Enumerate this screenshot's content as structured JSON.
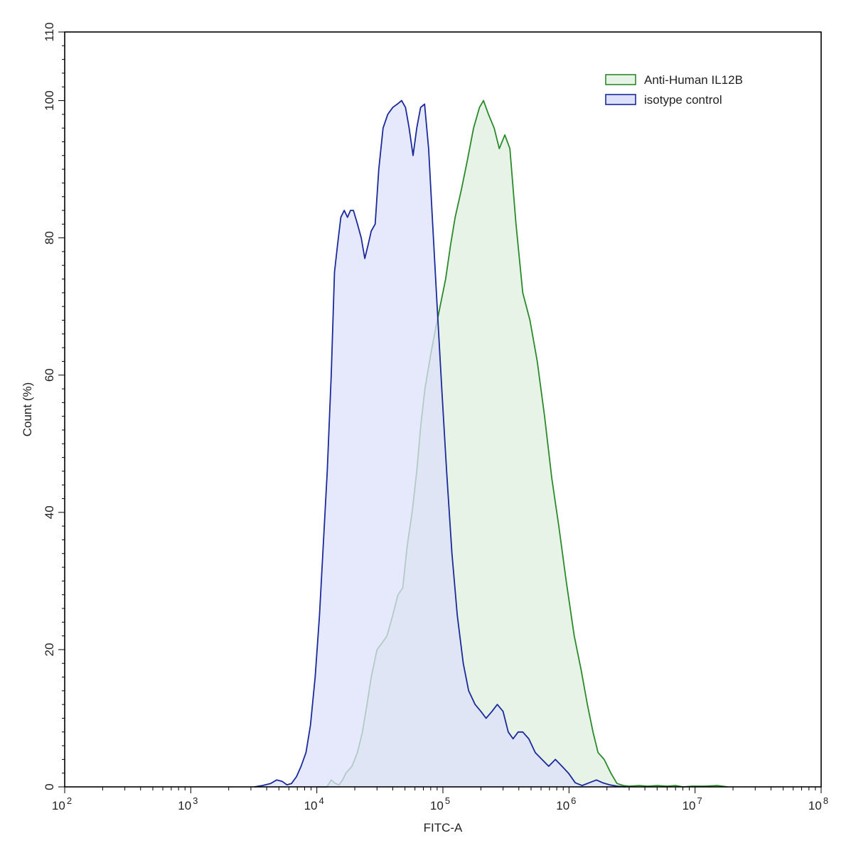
{
  "chart_data": {
    "type": "histogram",
    "title": "",
    "xlabel": "FITC-A",
    "ylabel": "Count  (%)",
    "x_scale": "log",
    "xlim": [
      100,
      100000000
    ],
    "ylim": [
      0,
      110
    ],
    "x_ticks": [
      {
        "base": "10",
        "exp": "2",
        "value": 100
      },
      {
        "base": "10",
        "exp": "3",
        "value": 1000
      },
      {
        "base": "10",
        "exp": "4",
        "value": 10000
      },
      {
        "base": "10",
        "exp": "5",
        "value": 100000
      },
      {
        "base": "10",
        "exp": "6",
        "value": 1000000
      },
      {
        "base": "10",
        "exp": "7",
        "value": 10000000
      },
      {
        "base": "10",
        "exp": "8",
        "value": 100000000
      }
    ],
    "y_ticks": [
      "0",
      "20",
      "40",
      "60",
      "80",
      "100",
      "110"
    ],
    "legend_position": "top-right",
    "grid": false,
    "series": [
      {
        "name": "Anti-Human IL12B",
        "stroke": "#2a8a2a",
        "fill": "#e6f3e6",
        "points": [
          [
            10000,
            0
          ],
          [
            12000,
            0
          ],
          [
            13000,
            1
          ],
          [
            14000,
            0.5
          ],
          [
            15000,
            0.3
          ],
          [
            16000,
            1
          ],
          [
            17000,
            2
          ],
          [
            19000,
            3
          ],
          [
            21000,
            5
          ],
          [
            23000,
            8
          ],
          [
            25000,
            12
          ],
          [
            27000,
            16
          ],
          [
            30000,
            20
          ],
          [
            33000,
            21
          ],
          [
            36000,
            22
          ],
          [
            40000,
            25
          ],
          [
            44000,
            28
          ],
          [
            48000,
            29
          ],
          [
            52000,
            35
          ],
          [
            57000,
            40
          ],
          [
            62000,
            46
          ],
          [
            67000,
            53
          ],
          [
            72000,
            58
          ],
          [
            80000,
            63
          ],
          [
            88000,
            67
          ],
          [
            95000,
            70
          ],
          [
            105000,
            74
          ],
          [
            115000,
            79
          ],
          [
            125000,
            83
          ],
          [
            140000,
            87
          ],
          [
            155000,
            91
          ],
          [
            175000,
            96
          ],
          [
            195000,
            99
          ],
          [
            210000,
            100
          ],
          [
            230000,
            98
          ],
          [
            255000,
            96
          ],
          [
            280000,
            93
          ],
          [
            310000,
            95
          ],
          [
            340000,
            93
          ],
          [
            380000,
            82
          ],
          [
            430000,
            72
          ],
          [
            490000,
            68
          ],
          [
            560000,
            62
          ],
          [
            640000,
            54
          ],
          [
            730000,
            45
          ],
          [
            830000,
            38
          ],
          [
            950000,
            30
          ],
          [
            1100000,
            22
          ],
          [
            1250000,
            17
          ],
          [
            1400000,
            12
          ],
          [
            1550000,
            8
          ],
          [
            1700000,
            5
          ],
          [
            1900000,
            4
          ],
          [
            2150000,
            2
          ],
          [
            2400000,
            0.5
          ],
          [
            2700000,
            0.2
          ],
          [
            3000000,
            0.1
          ],
          [
            3600000,
            0.2
          ],
          [
            4200000,
            0.1
          ],
          [
            5000000,
            0.2
          ],
          [
            6000000,
            0.1
          ],
          [
            7000000,
            0.2
          ],
          [
            8000000,
            0
          ],
          [
            9500000,
            0.1
          ],
          [
            12000000,
            0.1
          ],
          [
            15000000,
            0.2
          ],
          [
            18000000,
            0
          ]
        ]
      },
      {
        "name": "isotype control",
        "stroke": "#1a2a9a",
        "fill": "#dde0fa",
        "points": [
          [
            3200,
            0
          ],
          [
            3700,
            0.2
          ],
          [
            4300,
            0.5
          ],
          [
            4800,
            1
          ],
          [
            5300,
            0.8
          ],
          [
            5800,
            0.3
          ],
          [
            6300,
            0.5
          ],
          [
            6900,
            1.5
          ],
          [
            7500,
            3
          ],
          [
            8200,
            5
          ],
          [
            8900,
            9
          ],
          [
            9700,
            16
          ],
          [
            10500,
            25
          ],
          [
            11300,
            36
          ],
          [
            12100,
            46
          ],
          [
            13000,
            60
          ],
          [
            13800,
            75
          ],
          [
            14600,
            79
          ],
          [
            15500,
            83
          ],
          [
            16500,
            84
          ],
          [
            17500,
            83
          ],
          [
            18500,
            84
          ],
          [
            19500,
            84
          ],
          [
            21000,
            82
          ],
          [
            22500,
            80
          ],
          [
            24000,
            77
          ],
          [
            25500,
            79
          ],
          [
            27000,
            81
          ],
          [
            29000,
            82
          ],
          [
            31000,
            90
          ],
          [
            33500,
            96
          ],
          [
            36500,
            98
          ],
          [
            40000,
            99
          ],
          [
            43500,
            99.5
          ],
          [
            47000,
            100
          ],
          [
            50500,
            99
          ],
          [
            54000,
            96
          ],
          [
            58000,
            92
          ],
          [
            62000,
            96
          ],
          [
            66500,
            99
          ],
          [
            71500,
            99.5
          ],
          [
            77000,
            93
          ],
          [
            83000,
            82
          ],
          [
            90000,
            70
          ],
          [
            98000,
            58
          ],
          [
            107000,
            46
          ],
          [
            118000,
            34
          ],
          [
            130000,
            25
          ],
          [
            145000,
            18
          ],
          [
            160000,
            14
          ],
          [
            180000,
            12
          ],
          [
            200000,
            11
          ],
          [
            220000,
            10
          ],
          [
            245000,
            11
          ],
          [
            270000,
            12
          ],
          [
            300000,
            11
          ],
          [
            330000,
            8
          ],
          [
            360000,
            7
          ],
          [
            395000,
            8
          ],
          [
            430000,
            8
          ],
          [
            480000,
            7
          ],
          [
            540000,
            5
          ],
          [
            610000,
            4
          ],
          [
            690000,
            3
          ],
          [
            780000,
            4
          ],
          [
            880000,
            3
          ],
          [
            990000,
            2
          ],
          [
            1120000,
            0.6
          ],
          [
            1270000,
            0.2
          ],
          [
            1450000,
            0.6
          ],
          [
            1650000,
            1
          ],
          [
            1850000,
            0.6
          ],
          [
            2100000,
            0.3
          ],
          [
            2400000,
            0.1
          ],
          [
            2800000,
            0
          ]
        ]
      }
    ]
  }
}
